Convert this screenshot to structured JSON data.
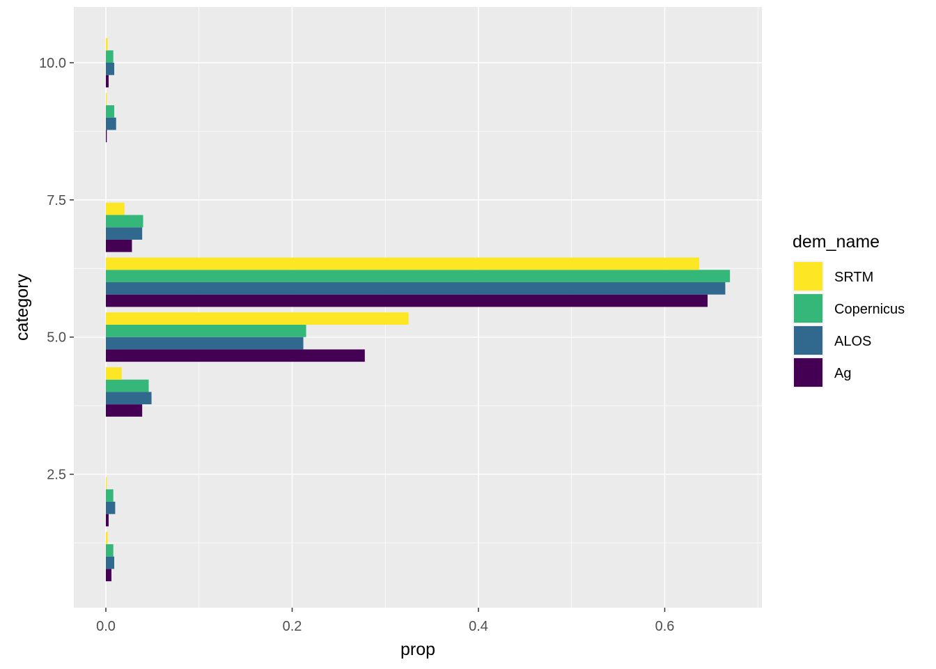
{
  "chart_data": {
    "type": "bar",
    "orientation": "horizontal",
    "position": "dodge",
    "xlabel": "prop",
    "ylabel": "category",
    "xlim": [
      -0.007,
      0.702
    ],
    "ylim": [
      0.55,
      10.45
    ],
    "x_ticks": [
      0.0,
      0.2,
      0.4,
      0.6
    ],
    "x_tick_labels": [
      "0.0",
      "0.2",
      "0.4",
      "0.6"
    ],
    "y_ticks": [
      2.5,
      5.0,
      7.5,
      10.0
    ],
    "y_tick_labels": [
      "2.5",
      "5.0",
      "7.5",
      "10.0"
    ],
    "categories": [
      1,
      2,
      4,
      5,
      6,
      7,
      9,
      10
    ],
    "grid": true,
    "legend": {
      "title": "dem_name",
      "placement": "right",
      "order": [
        "SRTM",
        "Copernicus",
        "ALOS",
        "Ag"
      ]
    },
    "series": [
      {
        "name": "Ag",
        "color": "#440154",
        "values": [
          0.006,
          0.003,
          0.039,
          0.278,
          0.646,
          0.028,
          0.001,
          0.003
        ]
      },
      {
        "name": "ALOS",
        "color": "#31688E",
        "values": [
          0.009,
          0.01,
          0.049,
          0.212,
          0.665,
          0.039,
          0.011,
          0.009
        ]
      },
      {
        "name": "Copernicus",
        "color": "#35B779",
        "values": [
          0.008,
          0.008,
          0.046,
          0.215,
          0.67,
          0.04,
          0.009,
          0.008
        ]
      },
      {
        "name": "SRTM",
        "color": "#FDE725",
        "values": [
          0.002,
          0.001,
          0.017,
          0.325,
          0.637,
          0.02,
          0.001,
          0.002
        ]
      }
    ]
  }
}
